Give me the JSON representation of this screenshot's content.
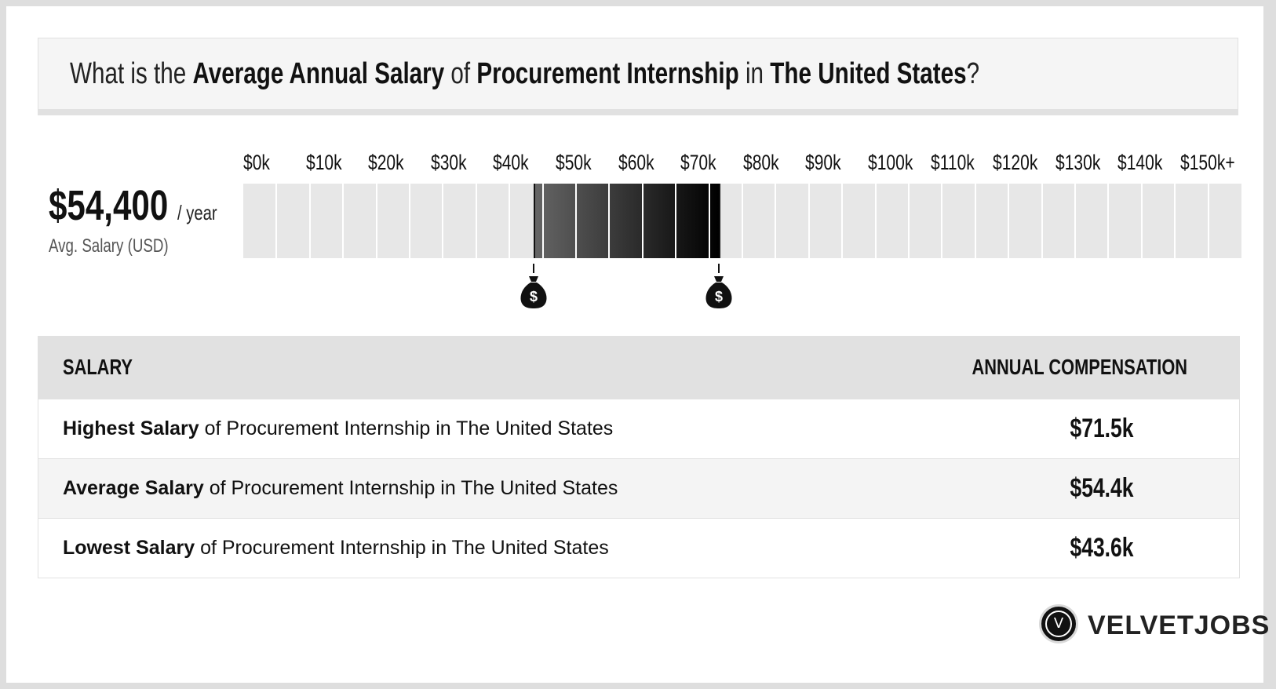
{
  "title": {
    "prefix": "What is the",
    "metric": "Average Annual Salary",
    "of": "of",
    "job": "Procurement Internship",
    "in": "in",
    "location": "The United States",
    "suffix": "?"
  },
  "summary": {
    "value": "$54,400",
    "unit": "/ year",
    "caption": "Avg. Salary (USD)"
  },
  "chart_data": {
    "type": "bar",
    "title": "",
    "xlabel": "",
    "ylabel": "",
    "tick_labels": [
      "$0k",
      "$10k",
      "$20k",
      "$30k",
      "$40k",
      "$50k",
      "$60k",
      "$70k",
      "$80k",
      "$90k",
      "$100k",
      "$110k",
      "$120k",
      "$130k",
      "$140k",
      "$150k+"
    ],
    "xlim": [
      0,
      150
    ],
    "range_start": 43.6,
    "range_end": 71.5,
    "average": 54.4,
    "unit": "thousand USD per year",
    "markers": [
      43.6,
      71.5
    ]
  },
  "table": {
    "header_left": "SALARY",
    "header_right": "ANNUAL COMPENSATION",
    "rows": [
      {
        "label_bold": "Highest Salary",
        "label_rest": " of Procurement Internship in The United States",
        "value": "$71.5k"
      },
      {
        "label_bold": "Average Salary",
        "label_rest": " of Procurement Internship in The United States",
        "value": "$54.4k"
      },
      {
        "label_bold": "Lowest Salary",
        "label_rest": " of Procurement Internship in The United States",
        "value": "$43.6k"
      }
    ]
  },
  "brand": {
    "logo_letter": "V",
    "name": "VELVETJOBS"
  },
  "colors": {
    "background": "#dedede",
    "card": "#ffffff",
    "bar_empty": "#e7e7e7",
    "range_start": "#666666",
    "range_end": "#000000",
    "header_bg": "#e1e1e1"
  }
}
